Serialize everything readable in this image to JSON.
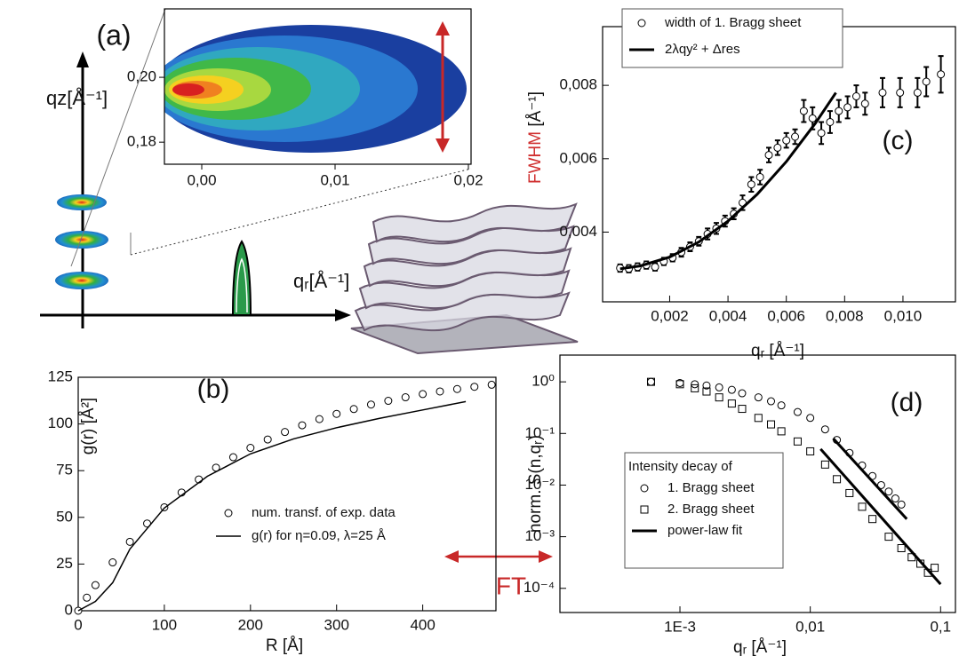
{
  "panel_a": {
    "label": "(a)",
    "y_axis_label": "qz[Å⁻¹]",
    "x_axis_label": "qᵣ[Å⁻¹]",
    "inset": {
      "xlim": [
        -0.0028,
        0.0202
      ],
      "ylim": [
        0.1732,
        0.2211
      ],
      "xticks": [
        {
          "value": 0,
          "label": "0,00"
        },
        {
          "value": 0.01,
          "label": "0,01"
        },
        {
          "value": 0.02,
          "label": "0,02"
        }
      ],
      "yticks": [
        {
          "value": 0.18,
          "label": "0,18"
        },
        {
          "value": 0.2,
          "label": "0,20"
        }
      ]
    }
  },
  "ft_label": "FT",
  "chart_data": [
    {
      "type": "scatter",
      "panel_label": "(b)",
      "x_label": "R [Å]",
      "y_label": "g(r) [Å²]",
      "xlim": [
        0,
        485
      ],
      "ylim": [
        0,
        125
      ],
      "xticks": [
        0,
        100,
        200,
        300,
        400
      ],
      "yticks": [
        0,
        25,
        50,
        75,
        100,
        125
      ],
      "series": [
        {
          "name": "num. transf. of exp. data",
          "marker": "circle",
          "color": "#000000",
          "x": [
            0,
            10,
            20,
            40,
            60,
            80,
            100,
            120,
            140,
            160,
            180,
            200,
            220,
            240,
            260,
            280,
            300,
            320,
            340,
            360,
            380,
            400,
            420,
            440,
            460,
            480
          ],
          "values": [
            0,
            7.0,
            13.7,
            25.9,
            36.9,
            46.7,
            55.4,
            63.3,
            70.3,
            76.6,
            82.2,
            87.2,
            91.7,
            95.7,
            99.3,
            102.6,
            105.4,
            108.0,
            110.4,
            112.4,
            114.3,
            116.0,
            117.4,
            118.7,
            119.9,
            121.0
          ]
        },
        {
          "name": "g(r) for η=0.09, λ=25 Å",
          "marker": "line",
          "color": "#000000",
          "x": [
            0,
            20,
            40,
            50,
            60,
            80,
            100,
            150,
            200,
            250,
            300,
            350,
            400,
            450
          ],
          "values": [
            0,
            5,
            15,
            24,
            33,
            44,
            55,
            72,
            84,
            92,
            98,
            103,
            107.5,
            112
          ]
        }
      ]
    },
    {
      "type": "scatter",
      "panel_label": "(c)",
      "x_label": "qᵣ [Å⁻¹]",
      "y_label": "FWHM",
      "y_label_unit": "[Å⁻¹]",
      "y_label_color": "#d03030",
      "xlim": [
        -0.0003,
        0.0118
      ],
      "ylim": [
        0.0021,
        0.0096
      ],
      "xticks": [
        {
          "value": 0.002,
          "label": "0,002"
        },
        {
          "value": 0.004,
          "label": "0,004"
        },
        {
          "value": 0.006,
          "label": "0,006"
        },
        {
          "value": 0.008,
          "label": "0,008"
        },
        {
          "value": 0.01,
          "label": "0,010"
        }
      ],
      "yticks": [
        {
          "value": 0.004,
          "label": "0,004"
        },
        {
          "value": 0.006,
          "label": "0,006"
        },
        {
          "value": 0.008,
          "label": "0,008"
        }
      ],
      "series": [
        {
          "name": "width of 1. Bragg sheet",
          "marker": "circle",
          "color": "#000000",
          "x": [
            0.0003,
            0.0006,
            0.0009,
            0.0012,
            0.0015,
            0.0018,
            0.0021,
            0.0024,
            0.0027,
            0.003,
            0.0033,
            0.0036,
            0.0039,
            0.0042,
            0.0045,
            0.0048,
            0.0051,
            0.0054,
            0.0057,
            0.006,
            0.0063,
            0.0066,
            0.0069,
            0.0072,
            0.0075,
            0.0078,
            0.0081,
            0.0084,
            0.0087,
            0.0093,
            0.0099,
            0.0105,
            0.0108,
            0.0113
          ],
          "values": [
            0.00302,
            0.003,
            0.00305,
            0.0031,
            0.00305,
            0.0032,
            0.0033,
            0.00345,
            0.0036,
            0.00375,
            0.00395,
            0.0041,
            0.0043,
            0.0045,
            0.0048,
            0.0053,
            0.0055,
            0.0061,
            0.0063,
            0.0065,
            0.0066,
            0.0073,
            0.0071,
            0.0067,
            0.007,
            0.0073,
            0.0074,
            0.0077,
            0.0075,
            0.0078,
            0.0078,
            0.0078,
            0.0081,
            0.0083
          ],
          "errors": [
            0.0001,
            0.0001,
            0.0001,
            0.0001,
            0.0001,
            0.0001,
            0.0001,
            0.00012,
            0.00012,
            0.00012,
            0.00015,
            0.00015,
            0.00015,
            0.00015,
            0.0002,
            0.0002,
            0.0002,
            0.0002,
            0.0002,
            0.0002,
            0.0002,
            0.0003,
            0.0003,
            0.0003,
            0.0003,
            0.0003,
            0.0003,
            0.0003,
            0.0003,
            0.0004,
            0.0004,
            0.0004,
            0.0004,
            0.0005
          ]
        },
        {
          "name": "2λqy² + Δres",
          "marker": "line",
          "color": "#000000",
          "x": [
            0.0003,
            0.001,
            0.002,
            0.003,
            0.004,
            0.005,
            0.006,
            0.007,
            0.0077
          ],
          "values": [
            0.003,
            0.00308,
            0.00332,
            0.00373,
            0.0043,
            0.00503,
            0.00592,
            0.00697,
            0.0078
          ]
        }
      ]
    },
    {
      "type": "scatter",
      "panel_label": "(d)",
      "x_label": "qᵣ [Å⁻¹]",
      "y_label": "norm. S(n,qᵣ)",
      "legend_title": "Intensity decay of",
      "xscale": "log",
      "yscale": "log",
      "xlim": [
        0.00012,
        0.13
      ],
      "ylim": [
        3.4e-05,
        3.3
      ],
      "xticks": [
        {
          "value": 0.001,
          "label": "1E-3"
        },
        {
          "value": 0.01,
          "label": "0,01"
        },
        {
          "value": 0.1,
          "label": "0,1"
        }
      ],
      "yticks": [
        {
          "value": 0.0001,
          "label": "10⁻⁴"
        },
        {
          "value": 0.001,
          "label": "10⁻³"
        },
        {
          "value": 0.01,
          "label": "10⁻²"
        },
        {
          "value": 0.1,
          "label": "10⁻¹"
        },
        {
          "value": 1,
          "label": "10⁰"
        }
      ],
      "series": [
        {
          "name": "1. Bragg sheet",
          "marker": "circle",
          "color": "#000000",
          "x": [
            0.0006,
            0.001,
            0.0013,
            0.0016,
            0.002,
            0.0025,
            0.003,
            0.004,
            0.005,
            0.006,
            0.008,
            0.01,
            0.013,
            0.016,
            0.02,
            0.025,
            0.03,
            0.035,
            0.04,
            0.045,
            0.05
          ],
          "values": [
            1.0,
            0.95,
            0.9,
            0.85,
            0.78,
            0.7,
            0.6,
            0.5,
            0.42,
            0.35,
            0.26,
            0.2,
            0.12,
            0.075,
            0.042,
            0.024,
            0.015,
            0.01,
            0.0075,
            0.0055,
            0.0042
          ]
        },
        {
          "name": "2. Bragg sheet",
          "marker": "square",
          "color": "#000000",
          "x": [
            0.0006,
            0.001,
            0.0013,
            0.0016,
            0.002,
            0.0025,
            0.003,
            0.004,
            0.005,
            0.006,
            0.008,
            0.01,
            0.013,
            0.016,
            0.02,
            0.025,
            0.03,
            0.04,
            0.05,
            0.06,
            0.07,
            0.08,
            0.09
          ],
          "values": [
            1.0,
            0.9,
            0.75,
            0.65,
            0.5,
            0.38,
            0.3,
            0.2,
            0.15,
            0.11,
            0.07,
            0.045,
            0.025,
            0.013,
            0.007,
            0.0038,
            0.0022,
            0.001,
            0.0006,
            0.0004,
            0.0003,
            0.0002,
            0.00025
          ]
        },
        {
          "name": "power-law fit",
          "marker": "line",
          "color": "#000000",
          "segments": [
            {
              "x": [
                0.015,
                0.055
              ],
              "values": [
                0.08,
                0.0022
              ]
            },
            {
              "x": [
                0.012,
                0.1
              ],
              "values": [
                0.05,
                0.00012
              ]
            }
          ]
        }
      ]
    }
  ]
}
